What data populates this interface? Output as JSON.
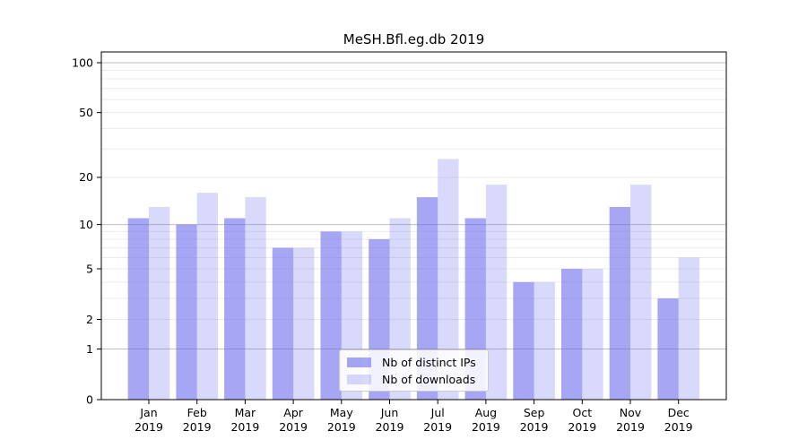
{
  "chart_data": {
    "type": "bar",
    "title": "MeSH.Bfl.eg.db 2019",
    "categories": [
      "Jan",
      "Feb",
      "Mar",
      "Apr",
      "May",
      "Jun",
      "Jul",
      "Aug",
      "Sep",
      "Oct",
      "Nov",
      "Dec"
    ],
    "year_label": "2019",
    "series": [
      {
        "name": "Nb of distinct IPs",
        "color": "rgba(102,102,238,0.58)",
        "values": [
          11,
          10,
          11,
          7,
          9,
          8,
          15,
          11,
          4,
          5,
          13,
          3
        ]
      },
      {
        "name": "Nb of downloads",
        "color": "rgba(102,102,238,0.25)",
        "values": [
          13,
          16,
          15,
          7,
          9,
          11,
          26,
          18,
          4,
          5,
          18,
          6
        ]
      }
    ],
    "yscale": "log1p",
    "ylim": [
      0,
      116
    ],
    "yticks": [
      0,
      1,
      2,
      5,
      10,
      20,
      50,
      100
    ],
    "ytick_labels": [
      "0",
      "1",
      "2",
      "5",
      "10",
      "20",
      "50",
      "100"
    ],
    "gridlines": {
      "light": [
        2,
        3,
        4,
        5,
        6,
        7,
        8,
        9,
        20,
        30,
        40,
        50,
        60,
        70,
        80,
        90
      ],
      "strong": [
        1,
        10,
        100
      ]
    },
    "grid": true,
    "legend_position": "bottom-center",
    "xlabel": "",
    "ylabel": "",
    "colors": {
      "grid_light": "#ebebeb",
      "grid_strong": "#bfbfbf",
      "spine": "#000000",
      "text": "#000000"
    }
  }
}
